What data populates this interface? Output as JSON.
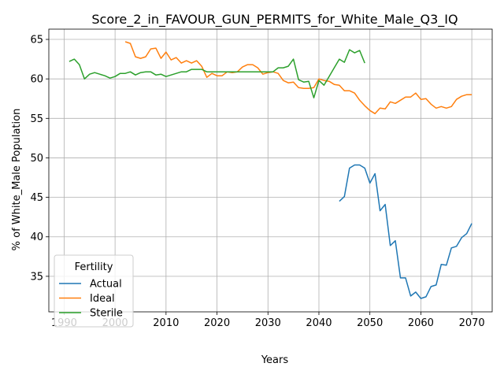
{
  "chart_data": {
    "type": "line",
    "title": "Score_2_in_FAVOUR_GUN_PERMITS_for_White_Male_Q3_IQ",
    "xlabel": "Years",
    "ylabel": "% of White_Male Population",
    "xlim": [
      1987,
      2074
    ],
    "ylim": [
      30.5,
      66.3
    ],
    "xticks": [
      1990,
      2000,
      2010,
      2020,
      2030,
      2040,
      2050,
      2060,
      2070
    ],
    "yticks": [
      35,
      40,
      45,
      50,
      55,
      60,
      65
    ],
    "grid": true,
    "legend": {
      "title": "Fertility",
      "placement": "lower-left"
    },
    "series": [
      {
        "name": "Actual",
        "color": "#1f77b4",
        "x": [
          2044,
          2045,
          2046,
          2047,
          2048,
          2049,
          2050,
          2051,
          2052,
          2053,
          2054,
          2055,
          2056,
          2057,
          2058,
          2059,
          2060,
          2061,
          2062,
          2063,
          2064,
          2065,
          2066,
          2067,
          2068,
          2069,
          2070
        ],
        "y": [
          44.5,
          45.1,
          48.7,
          49.1,
          49.1,
          48.7,
          46.8,
          48.0,
          43.3,
          44.1,
          38.9,
          39.5,
          34.8,
          34.8,
          32.5,
          33.0,
          32.2,
          32.4,
          33.7,
          33.9,
          36.5,
          36.4,
          38.6,
          38.8,
          39.9,
          40.4,
          41.7
        ]
      },
      {
        "name": "Ideal",
        "color": "#ff7f0e",
        "x": [
          2002,
          2003,
          2004,
          2005,
          2006,
          2007,
          2008,
          2009,
          2010,
          2011,
          2012,
          2013,
          2014,
          2015,
          2016,
          2017,
          2018,
          2019,
          2020,
          2021,
          2022,
          2023,
          2024,
          2025,
          2026,
          2027,
          2028,
          2029,
          2030,
          2031,
          2032,
          2033,
          2034,
          2035,
          2036,
          2037,
          2038,
          2039,
          2040,
          2041,
          2042,
          2043,
          2044,
          2045,
          2046,
          2047,
          2048,
          2049,
          2050,
          2051,
          2052,
          2053,
          2054,
          2055,
          2056,
          2057,
          2058,
          2059,
          2060,
          2061,
          2062,
          2063,
          2064,
          2065,
          2066,
          2067,
          2068,
          2069,
          2070
        ],
        "y": [
          64.7,
          64.5,
          62.8,
          62.6,
          62.8,
          63.8,
          63.9,
          62.6,
          63.4,
          62.4,
          62.7,
          62.0,
          62.3,
          62.0,
          62.3,
          61.6,
          60.2,
          60.7,
          60.4,
          60.4,
          60.9,
          60.8,
          60.9,
          61.5,
          61.8,
          61.8,
          61.4,
          60.6,
          60.8,
          60.9,
          60.7,
          59.8,
          59.5,
          59.6,
          58.9,
          58.8,
          58.8,
          58.9,
          60.0,
          59.8,
          59.7,
          59.3,
          59.2,
          58.5,
          58.5,
          58.2,
          57.3,
          56.6,
          56.0,
          55.6,
          56.3,
          56.2,
          57.1,
          56.9,
          57.3,
          57.7,
          57.7,
          58.2,
          57.4,
          57.5,
          56.8,
          56.3,
          56.5,
          56.3,
          56.5,
          57.4,
          57.8,
          58.0,
          58.0
        ]
      },
      {
        "name": "Sterile",
        "color": "#2ca02c",
        "x": [
          1991,
          1992,
          1993,
          1994,
          1995,
          1996,
          1997,
          1998,
          1999,
          2000,
          2001,
          2002,
          2003,
          2004,
          2005,
          2006,
          2007,
          2008,
          2009,
          2010,
          2011,
          2012,
          2013,
          2014,
          2015,
          2016,
          2017,
          2018,
          2019,
          2020,
          2021,
          2022,
          2023,
          2024,
          2025,
          2026,
          2027,
          2028,
          2029,
          2030,
          2031,
          2032,
          2033,
          2034,
          2035,
          2036,
          2037,
          2038,
          2039,
          2040,
          2041,
          2042,
          2043,
          2044,
          2045,
          2046,
          2047,
          2048,
          2049
        ],
        "y": [
          62.2,
          62.5,
          61.8,
          60.0,
          60.6,
          60.8,
          60.6,
          60.4,
          60.1,
          60.3,
          60.7,
          60.7,
          60.9,
          60.5,
          60.8,
          60.9,
          60.9,
          60.5,
          60.6,
          60.3,
          60.5,
          60.7,
          60.9,
          60.9,
          61.2,
          61.2,
          61.2,
          60.9,
          60.9,
          60.9,
          60.9,
          60.9,
          60.9,
          60.9,
          60.9,
          60.9,
          60.9,
          60.9,
          60.9,
          60.9,
          60.9,
          61.4,
          61.4,
          61.6,
          62.5,
          59.9,
          59.6,
          59.7,
          57.6,
          59.8,
          59.2,
          60.3,
          61.4,
          62.5,
          62.1,
          63.7,
          63.3,
          63.6,
          62.0
        ]
      }
    ]
  }
}
